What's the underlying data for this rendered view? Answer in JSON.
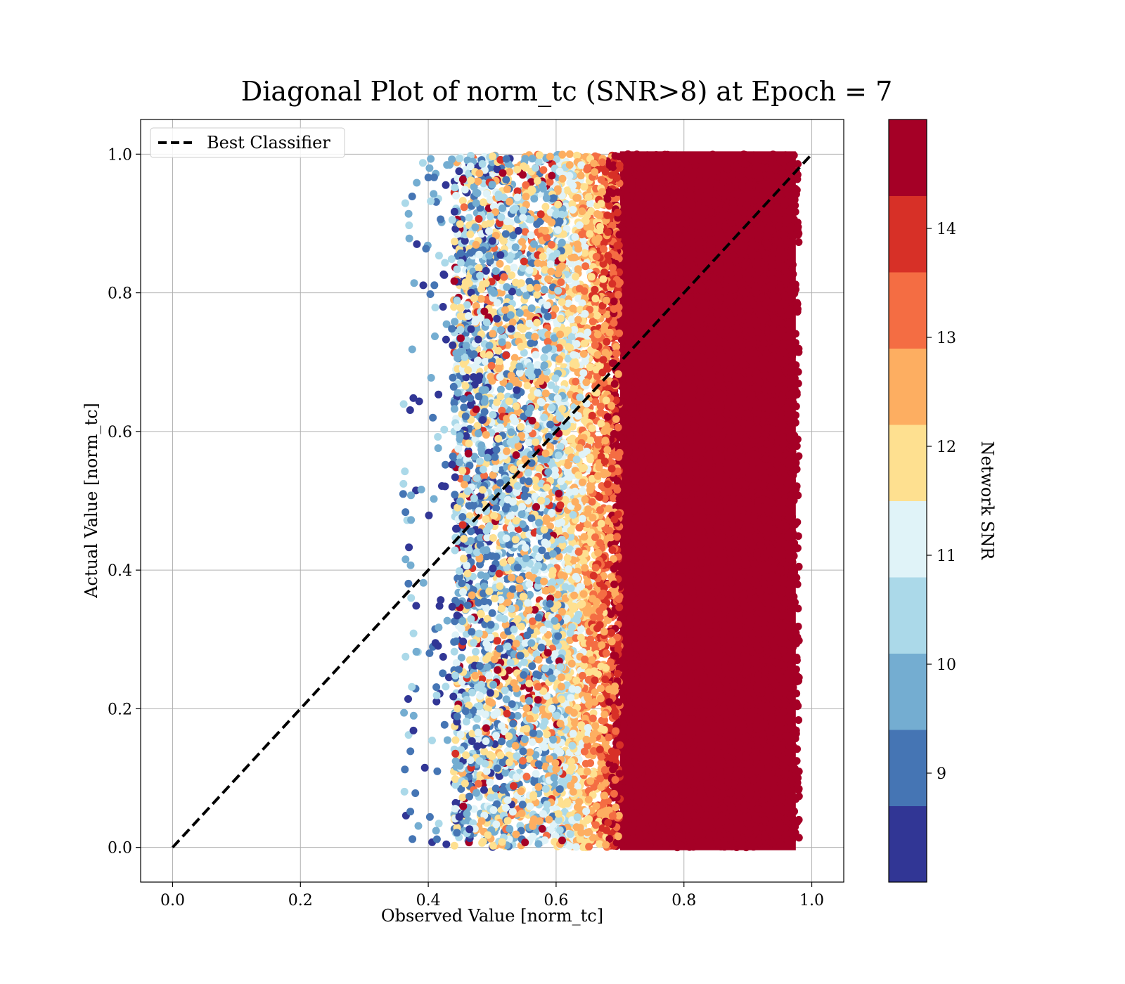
{
  "chart_data": {
    "type": "scatter",
    "title": "Diagonal Plot of norm_tc (SNR>8) at Epoch = 7",
    "xlabel": "Observed Value [norm_tc]",
    "ylabel": "Actual Value [norm_tc]",
    "xlim": [
      -0.05,
      1.05
    ],
    "ylim": [
      -0.05,
      1.05
    ],
    "xticks": [
      "0.0",
      "0.2",
      "0.4",
      "0.6",
      "0.8",
      "1.0"
    ],
    "yticks": [
      "0.0",
      "0.2",
      "0.4",
      "0.6",
      "0.8",
      "1.0"
    ],
    "grid": true,
    "legend": {
      "placement": "upper-left",
      "entries": [
        "Best Classifier"
      ]
    },
    "reference_line": {
      "name": "Best Classifier",
      "x": [
        0.0,
        1.0
      ],
      "y": [
        0.0,
        1.0
      ],
      "style": "dashed",
      "color": "#000000"
    },
    "colorbar": {
      "label": "Network SNR",
      "range": [
        8,
        15
      ],
      "ticks": [
        "9",
        "10",
        "11",
        "12",
        "13",
        "14"
      ],
      "colors": [
        "#313695",
        "#4575b4",
        "#74add1",
        "#abd9e9",
        "#e0f3f8",
        "#fee090",
        "#fdae61",
        "#f46d43",
        "#d73027",
        "#a50026"
      ]
    },
    "scatter_description_density": [
      {
        "x_range": [
          0.36,
          0.45
        ],
        "y_range": [
          0.0,
          1.0
        ],
        "dominant_snr": [
          8,
          10
        ],
        "density": "sparse"
      },
      {
        "x_range": [
          0.45,
          0.6
        ],
        "y_range": [
          0.0,
          1.0
        ],
        "dominant_snr": [
          8,
          11.5
        ],
        "density": "dense"
      },
      {
        "x_range": [
          0.6,
          0.68
        ],
        "y_range": [
          0.0,
          1.0
        ],
        "dominant_snr": [
          11,
          14
        ],
        "density": "dense"
      },
      {
        "x_range": [
          0.68,
          0.98
        ],
        "y_range": [
          0.0,
          1.0
        ],
        "dominant_snr": [
          14,
          15
        ],
        "density": "saturated"
      }
    ]
  }
}
